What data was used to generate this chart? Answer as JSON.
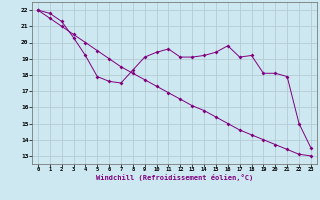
{
  "xlabel": "Windchill (Refroidissement éolien,°C)",
  "bg_color": "#cde8f0",
  "line_color": "#800080",
  "grid_color": "#b0c8d0",
  "ylim": [
    12.5,
    22.5
  ],
  "xlim": [
    -0.5,
    23.5
  ],
  "yticks": [
    13,
    14,
    15,
    16,
    17,
    18,
    19,
    20,
    21,
    22
  ],
  "xticks": [
    0,
    1,
    2,
    3,
    4,
    5,
    6,
    7,
    8,
    9,
    10,
    11,
    12,
    13,
    14,
    15,
    16,
    17,
    18,
    19,
    20,
    21,
    22,
    23
  ],
  "series1_x": [
    0,
    1,
    2,
    3,
    4,
    5,
    6,
    7,
    8,
    9,
    10,
    11,
    12,
    13,
    14,
    15,
    16,
    17,
    18,
    19,
    20,
    21,
    22,
    23
  ],
  "series1_y": [
    22.0,
    21.8,
    21.3,
    20.3,
    19.2,
    17.9,
    17.6,
    17.5,
    18.3,
    19.1,
    19.4,
    19.6,
    19.1,
    19.1,
    19.2,
    19.4,
    19.8,
    19.1,
    19.2,
    18.1,
    18.1,
    17.9,
    15.0,
    13.5
  ],
  "series2_x": [
    0,
    1,
    2,
    3,
    4,
    5,
    6,
    7,
    8,
    9,
    10,
    11,
    12,
    13,
    14,
    15,
    16,
    17,
    18,
    19,
    20,
    21,
    22,
    23
  ],
  "series2_y": [
    22.0,
    21.5,
    21.0,
    20.5,
    20.0,
    19.5,
    19.0,
    18.5,
    18.1,
    17.7,
    17.3,
    16.9,
    16.5,
    16.1,
    15.8,
    15.4,
    15.0,
    14.6,
    14.3,
    14.0,
    13.7,
    13.4,
    13.1,
    13.0
  ]
}
